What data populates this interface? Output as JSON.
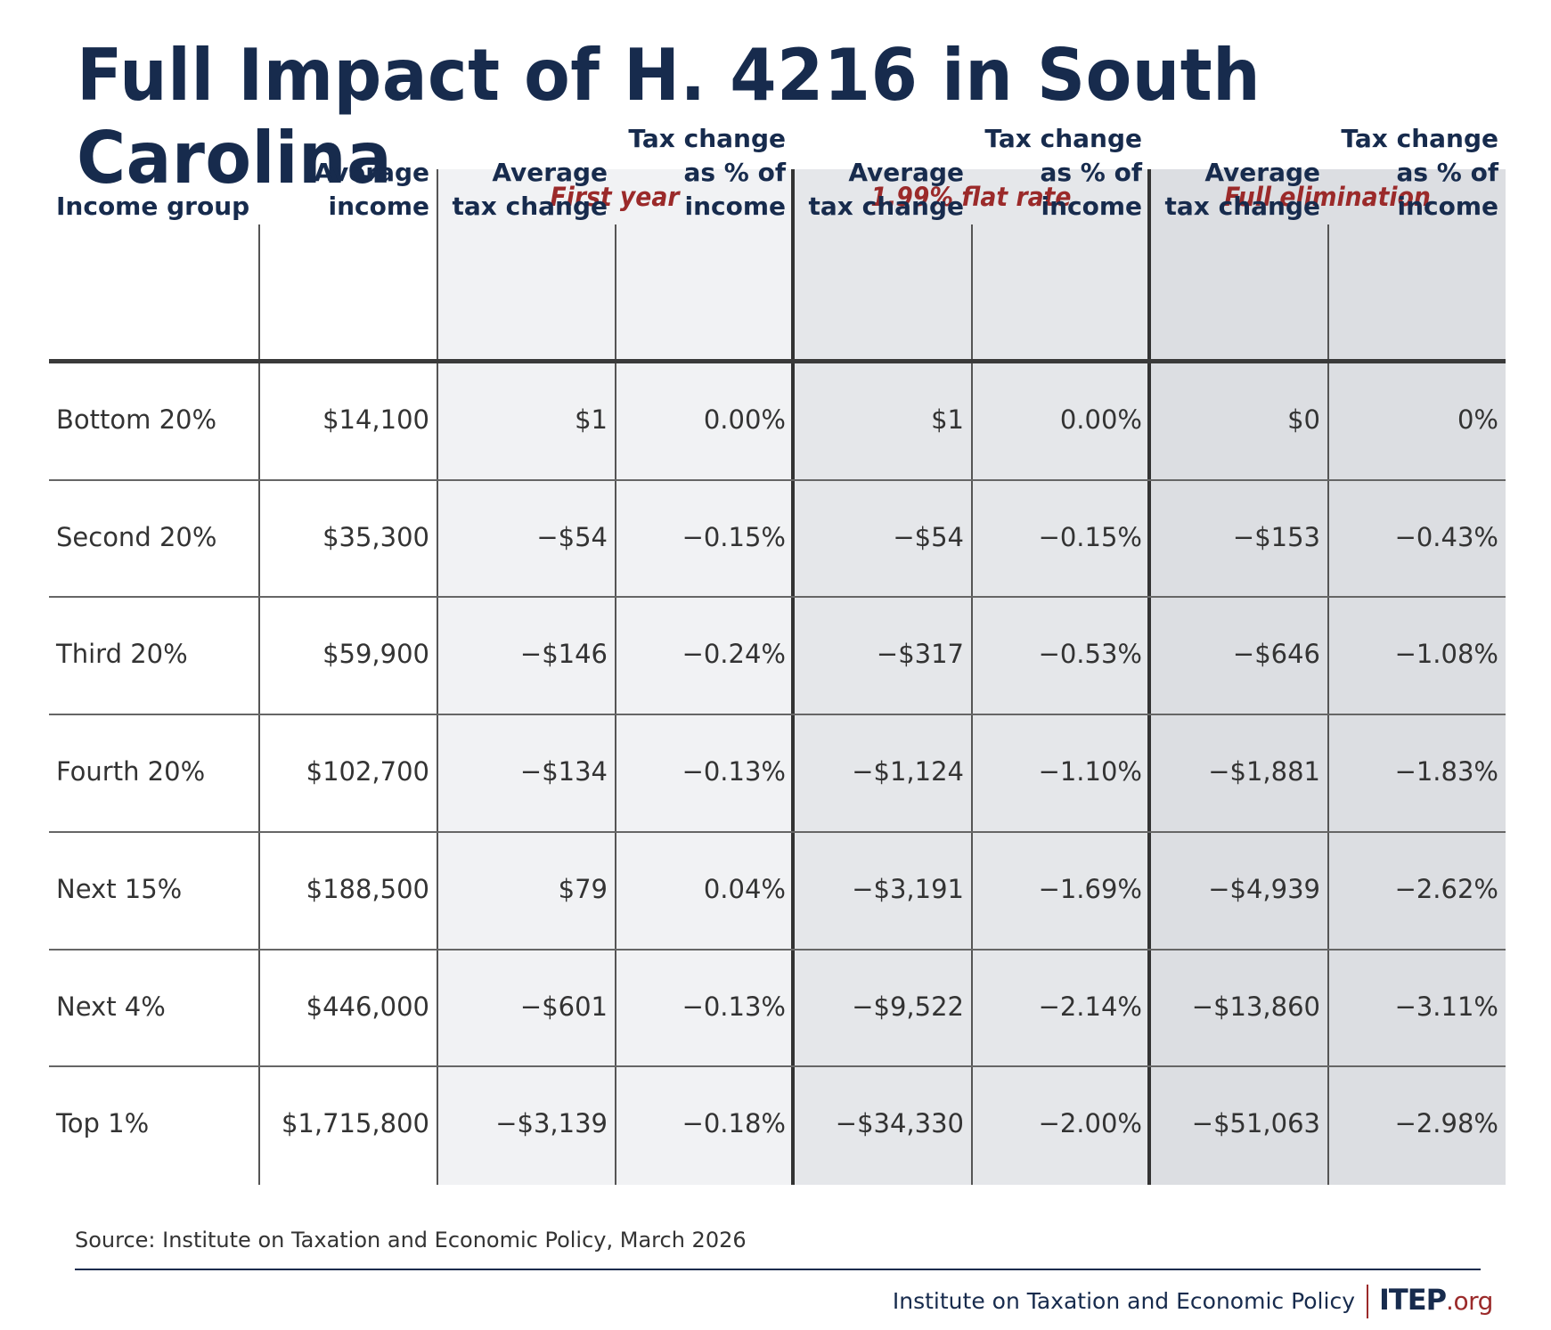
{
  "title": "Full Impact of H. 4216 in South Carolina",
  "colors": {
    "title": "#172b4d",
    "group_label": "#9b2a2a",
    "header_text": "#172b4d",
    "body_text": "#333333",
    "shade_first_year": "#f1f2f4",
    "shade_flat_rate": "#e5e7ea",
    "shade_full_elimination": "#dcdee2"
  },
  "chart_data": {
    "type": "table",
    "title": "Full Impact of H. 4216 in South Carolina",
    "column_groups": [
      {
        "label": "First year",
        "columns": [
          "Average tax change",
          "Tax change as % of income"
        ]
      },
      {
        "label": "1.99% flat rate",
        "columns": [
          "Average tax change",
          "Tax change as % of income"
        ]
      },
      {
        "label": "Full elimination",
        "columns": [
          "Average tax change",
          "Tax change as % of income"
        ]
      }
    ],
    "headers": [
      {
        "lines": [
          "Income group"
        ]
      },
      {
        "lines": [
          "Average",
          "income"
        ]
      },
      {
        "lines": [
          "Average",
          "tax change"
        ]
      },
      {
        "lines": [
          "Tax change",
          "as % of",
          "income"
        ]
      },
      {
        "lines": [
          "Average",
          "tax change"
        ]
      },
      {
        "lines": [
          "Tax change",
          "as % of",
          "income"
        ]
      },
      {
        "lines": [
          "Average",
          "tax change"
        ]
      },
      {
        "lines": [
          "Tax change",
          "as % of",
          "income"
        ]
      }
    ],
    "rows": [
      [
        "Bottom 20%",
        "$14,100",
        "$1",
        "0.00%",
        "$1",
        "0.00%",
        "$0",
        "0%"
      ],
      [
        "Second 20%",
        "$35,300",
        "−$54",
        "−0.15%",
        "−$54",
        "−0.15%",
        "−$153",
        "−0.43%"
      ],
      [
        "Third 20%",
        "$59,900",
        "−$146",
        "−0.24%",
        "−$317",
        "−0.53%",
        "−$646",
        "−1.08%"
      ],
      [
        "Fourth 20%",
        "$102,700",
        "−$134",
        "−0.13%",
        "−$1,124",
        "−1.10%",
        "−$1,881",
        "−1.83%"
      ],
      [
        "Next 15%",
        "$188,500",
        "$79",
        "0.04%",
        "−$3,191",
        "−1.69%",
        "−$4,939",
        "−2.62%"
      ],
      [
        "Next 4%",
        "$446,000",
        "−$601",
        "−0.13%",
        "−$9,522",
        "−2.14%",
        "−$13,860",
        "−3.11%"
      ],
      [
        "Top 1%",
        "$1,715,800",
        "−$3,139",
        "−0.18%",
        "−$34,330",
        "−2.00%",
        "−$51,063",
        "−2.98%"
      ]
    ]
  },
  "footer": {
    "source": "Source: Institute on Taxation and Economic Policy, March 2026",
    "org_name": "Institute on Taxation and Economic Policy",
    "logo_main": "ITEP",
    "logo_suffix": ".org"
  }
}
